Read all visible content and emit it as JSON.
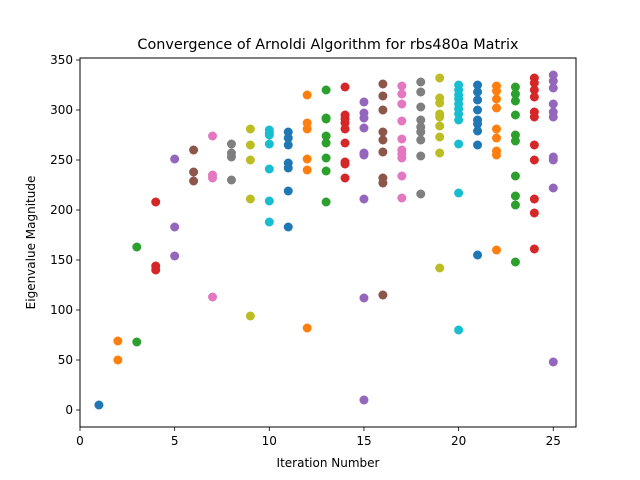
{
  "chart_data": {
    "type": "scatter",
    "title": "Convergence of Arnoldi Algorithm for rbs480a Matrix",
    "xlabel": "Iteration Number",
    "ylabel": "Eigenvalue Magnitude",
    "xlim": [
      0,
      26.2
    ],
    "ylim": [
      -17,
      352
    ],
    "xticks": [
      0,
      5,
      10,
      15,
      20,
      25
    ],
    "yticks": [
      0,
      50,
      100,
      150,
      200,
      250,
      300,
      350
    ],
    "grid": false,
    "legend": "none",
    "colors": [
      "#1f77b4",
      "#ff7f0e",
      "#2ca02c",
      "#d62728",
      "#9467bd",
      "#8c564b",
      "#e377c2",
      "#7f7f7f",
      "#bcbd22",
      "#17becf"
    ],
    "series": [
      {
        "x": 1,
        "y": [
          5
        ]
      },
      {
        "x": 2,
        "y": [
          69,
          50
        ]
      },
      {
        "x": 3,
        "y": [
          163,
          68
        ]
      },
      {
        "x": 4,
        "y": [
          208,
          144,
          140
        ]
      },
      {
        "x": 5,
        "y": [
          251,
          183,
          154
        ]
      },
      {
        "x": 6,
        "y": [
          260,
          238,
          229
        ]
      },
      {
        "x": 7,
        "y": [
          274,
          235,
          232,
          113
        ]
      },
      {
        "x": 8,
        "y": [
          266,
          257,
          253,
          230
        ]
      },
      {
        "x": 9,
        "y": [
          281,
          265,
          250,
          211,
          94
        ]
      },
      {
        "x": 10,
        "y": [
          280,
          277,
          275,
          266,
          241,
          209,
          188
        ]
      },
      {
        "x": 11,
        "y": [
          278,
          272,
          265,
          247,
          242,
          219,
          183
        ]
      },
      {
        "x": 12,
        "y": [
          315,
          287,
          281,
          251,
          240,
          82
        ]
      },
      {
        "x": 13,
        "y": [
          320,
          292,
          291,
          274,
          267,
          252,
          239,
          208
        ]
      },
      {
        "x": 14,
        "y": [
          323,
          295,
          291,
          287,
          281,
          267,
          248,
          246,
          232
        ]
      },
      {
        "x": 15,
        "y": [
          308,
          297,
          292,
          282,
          257,
          255,
          211,
          112,
          10
        ]
      },
      {
        "x": 16,
        "y": [
          326,
          314,
          300,
          278,
          270,
          258,
          232,
          227,
          115
        ]
      },
      {
        "x": 17,
        "y": [
          324,
          316,
          306,
          289,
          271,
          260,
          256,
          252,
          234,
          212
        ]
      },
      {
        "x": 18,
        "y": [
          328,
          318,
          303,
          290,
          283,
          278,
          270,
          254,
          216
        ]
      },
      {
        "x": 19,
        "y": [
          332,
          312,
          307,
          296,
          293,
          284,
          273,
          257,
          142
        ]
      },
      {
        "x": 20,
        "y": [
          325,
          320,
          315,
          311,
          306,
          301,
          296,
          290,
          266,
          217,
          80
        ]
      },
      {
        "x": 21,
        "y": [
          325,
          318,
          310,
          300,
          290,
          286,
          279,
          265,
          155
        ]
      },
      {
        "x": 22,
        "y": [
          324,
          319,
          311,
          302,
          281,
          272,
          259,
          255,
          160
        ]
      },
      {
        "x": 23,
        "y": [
          323,
          316,
          309,
          295,
          275,
          269,
          234,
          214,
          205,
          148
        ]
      },
      {
        "x": 24,
        "y": [
          332,
          327,
          320,
          313,
          298,
          293,
          265,
          250,
          211,
          197,
          161
        ]
      },
      {
        "x": 25,
        "y": [
          335,
          329,
          322,
          306,
          298,
          293,
          253,
          250,
          222,
          48
        ]
      }
    ]
  }
}
